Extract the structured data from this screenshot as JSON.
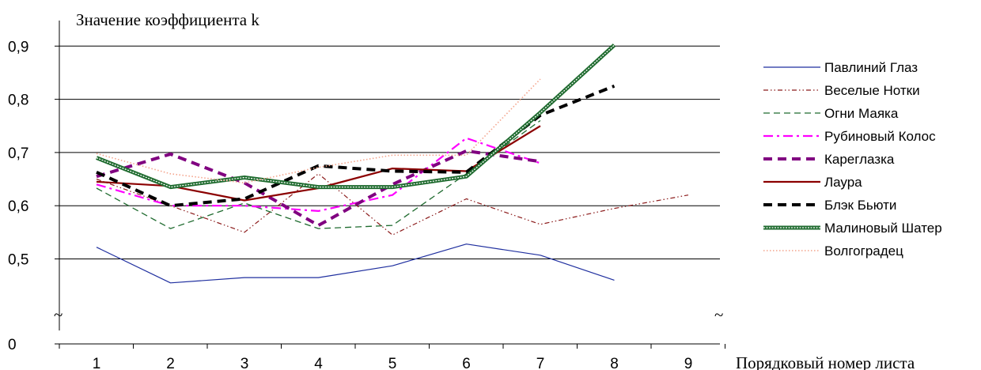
{
  "chart_data": {
    "type": "line",
    "title": "",
    "ylabel": "Значение коэффициента k",
    "xlabel": "Порядковый номер листа",
    "categories": [
      1,
      2,
      3,
      4,
      5,
      6,
      7,
      8,
      9
    ],
    "ylim": [
      0.44,
      0.92
    ],
    "y_break_value": 0,
    "y_ticks": [
      "0,5",
      "0,6",
      "0,7",
      "0,8",
      "0,9"
    ],
    "y_zero_label": "0",
    "axis_break_glyph": "~",
    "grid": true,
    "legend_position": "right",
    "series": [
      {
        "name": "Павлиний Глаз",
        "color": "#1f2f9f",
        "style": "solid-thin",
        "x": [
          1,
          2,
          3,
          4,
          5,
          6,
          7,
          8
        ],
        "values": [
          0.522,
          0.455,
          0.465,
          0.465,
          0.487,
          0.528,
          0.507,
          0.46
        ]
      },
      {
        "name": "Веселые Нотки",
        "color": "#8b1a1a",
        "style": "dash-dot-dot",
        "x": [
          1,
          2,
          3,
          4,
          5,
          6,
          7,
          8,
          9
        ],
        "values": [
          0.65,
          0.6,
          0.55,
          0.66,
          0.545,
          0.613,
          0.565,
          0.595,
          0.62
        ]
      },
      {
        "name": "Огни Маяка",
        "color": "#1f6b2f",
        "style": "dashed",
        "x": [
          1,
          2,
          3,
          4,
          5,
          6,
          7
        ],
        "values": [
          0.633,
          0.557,
          0.605,
          0.557,
          0.563,
          0.66,
          0.76
        ]
      },
      {
        "name": "Рубиновый Колос",
        "color": "#ff00ff",
        "style": "long-dash-dot",
        "x": [
          1,
          2,
          3,
          4,
          5,
          6,
          7
        ],
        "values": [
          0.64,
          0.6,
          0.6,
          0.59,
          0.62,
          0.727,
          0.68
        ]
      },
      {
        "name": "Кареглазка",
        "color": "#800080",
        "style": "thick-dash",
        "x": [
          1,
          2,
          3,
          4,
          5,
          6,
          7
        ],
        "values": [
          0.655,
          0.697,
          0.643,
          0.563,
          0.64,
          0.703,
          0.683
        ]
      },
      {
        "name": "Лаура",
        "color": "#8b0000",
        "style": "solid",
        "x": [
          1,
          2,
          3,
          4,
          5,
          6,
          7
        ],
        "values": [
          0.645,
          0.637,
          0.61,
          0.633,
          0.67,
          0.665,
          0.75
        ]
      },
      {
        "name": "Блэк Бьюти",
        "color": "#000000",
        "style": "thick-dash",
        "x": [
          1,
          2,
          3,
          4,
          5,
          6,
          7,
          8
        ],
        "values": [
          0.663,
          0.6,
          0.613,
          0.675,
          0.665,
          0.663,
          0.77,
          0.825
        ]
      },
      {
        "name": "Малиновый Шатер",
        "color": "#1f6b2f",
        "style": "double",
        "x": [
          1,
          2,
          3,
          4,
          5,
          6,
          7,
          8
        ],
        "values": [
          0.69,
          0.635,
          0.653,
          0.635,
          0.635,
          0.655,
          0.775,
          0.902
        ]
      },
      {
        "name": "Волгоградец",
        "color": "#f4a48c",
        "style": "dotted",
        "x": [
          1,
          2,
          3,
          4,
          5,
          6,
          7
        ],
        "values": [
          0.698,
          0.66,
          0.643,
          0.672,
          0.695,
          0.695,
          0.838
        ]
      }
    ]
  }
}
